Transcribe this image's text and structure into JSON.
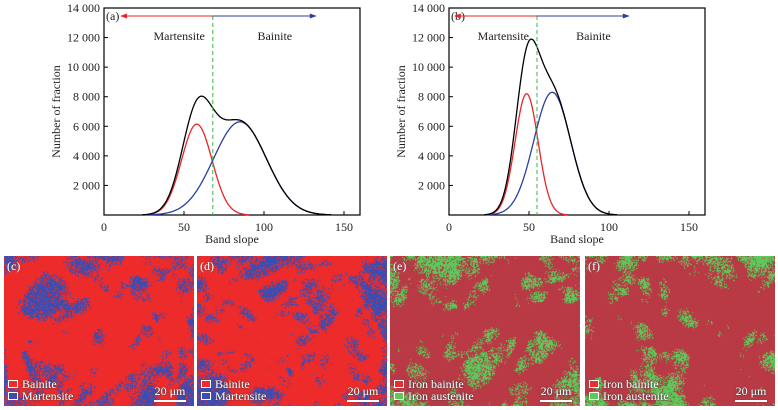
{
  "chart_data": [
    {
      "type": "line",
      "panel_label": "(a)",
      "xlabel": "Band slope",
      "ylabel": "Number of fraction",
      "xlim": [
        0,
        160
      ],
      "ylim": [
        0,
        14000
      ],
      "xticks": [
        0,
        50,
        100,
        150
      ],
      "xtick_labels": [
        "0",
        "50",
        "100",
        "150"
      ],
      "yticks": [
        2000,
        4000,
        6000,
        8000,
        10000,
        12000,
        14000
      ],
      "ytick_labels": [
        "2 000",
        "4 000",
        "6 000",
        "8 000",
        "10 000",
        "12 000",
        "14 000"
      ],
      "threshold_x": 68,
      "annotations": {
        "left": "Martensite",
        "right": "Bainite",
        "arrow_left_to": 10,
        "arrow_right_to": 133
      },
      "series": [
        {
          "name": "Martensite fit",
          "color": "#e8262a",
          "kind": "gaussian",
          "peak": 6150,
          "center": 58,
          "sigma": 9.5
        },
        {
          "name": "Bainite fit",
          "color": "#2b3f9e",
          "kind": "gaussian",
          "peak": 6300,
          "center": 85,
          "sigma": 16.5
        },
        {
          "name": "Total",
          "color": "#000000",
          "kind": "sum"
        }
      ]
    },
    {
      "type": "line",
      "panel_label": "(b)",
      "xlabel": "Band slope",
      "ylabel": "Number of fraction",
      "xlim": [
        0,
        160
      ],
      "ylim": [
        0,
        14000
      ],
      "xticks": [
        0,
        50,
        100,
        150
      ],
      "xtick_labels": [
        "0",
        "50",
        "100",
        "150"
      ],
      "yticks": [
        2000,
        4000,
        6000,
        8000,
        10000,
        12000,
        14000
      ],
      "ytick_labels": [
        "2 000",
        "4 000",
        "6 000",
        "8 000",
        "10 000",
        "12 000",
        "14 000"
      ],
      "threshold_x": 55,
      "annotations": {
        "left": "Martensite",
        "right": "Bainite",
        "arrow_left_to": 3,
        "arrow_right_to": 113
      },
      "series": [
        {
          "name": "Martensite fit",
          "color": "#e8262a",
          "kind": "gaussian",
          "peak": 8200,
          "center": 48.5,
          "sigma": 7.2
        },
        {
          "name": "Bainite fit",
          "color": "#2b3f9e",
          "kind": "gaussian",
          "peak": 8300,
          "center": 64.5,
          "sigma": 11.5
        },
        {
          "name": "Total",
          "color": "#000000",
          "kind": "sum"
        }
      ]
    }
  ],
  "micrographs": [
    {
      "label": "(c)",
      "colors": [
        "#ee2b2b",
        "#3a4db2"
      ],
      "mix": 0.62,
      "legend": [
        {
          "text": "Bainite",
          "color": "#ee2b2b"
        },
        {
          "text": "Martensite",
          "color": "#3a4db2"
        }
      ],
      "scale": "20 μm"
    },
    {
      "label": "(d)",
      "colors": [
        "#ee2b2b",
        "#3a4db2"
      ],
      "mix": 0.66,
      "legend": [
        {
          "text": "Bainite",
          "color": "#ee2b2b"
        },
        {
          "text": "Martensite",
          "color": "#3a4db2"
        }
      ],
      "scale": "20 μm"
    },
    {
      "label": "(e)",
      "colors": [
        "#b93a45",
        "#5cc95a"
      ],
      "mix": 0.5,
      "legend": [
        {
          "text": "Iron bainite",
          "color": "#e83030"
        },
        {
          "text": "Iron austenite",
          "color": "#5cc95a"
        }
      ],
      "scale": "20 μm"
    },
    {
      "label": "(f)",
      "colors": [
        "#b93a45",
        "#5cc95a"
      ],
      "mix": 0.62,
      "legend": [
        {
          "text": "Iron bainite",
          "color": "#e83030"
        },
        {
          "text": "Iron austenite",
          "color": "#5cc95a"
        }
      ],
      "scale": "20 μm"
    }
  ]
}
